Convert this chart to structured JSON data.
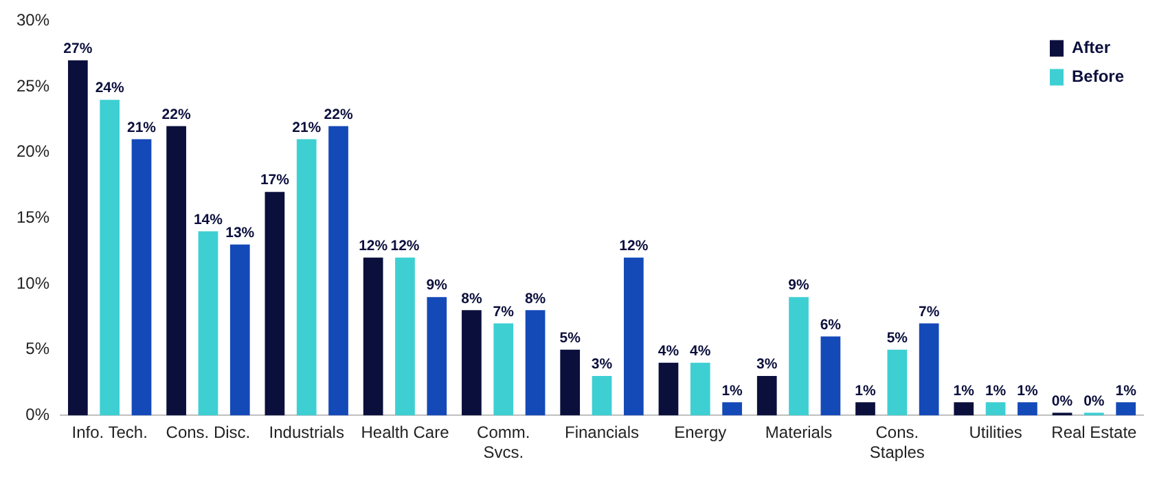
{
  "chart_data": {
    "type": "bar",
    "categories": [
      "Info. Tech.",
      "Cons. Disc.",
      "Industrials",
      "Health Care",
      "Comm.\nSvcs.",
      "Financials",
      "Energy",
      "Materials",
      "Cons.\nStaples",
      "Utilities",
      "Real Estate"
    ],
    "series": [
      {
        "name": "After",
        "color": "#0b0f3c",
        "values": [
          27,
          22,
          17,
          12,
          8,
          5,
          4,
          3,
          1,
          1,
          0
        ],
        "value_labels": [
          "27%",
          "22%",
          "17%",
          "12%",
          "8%",
          "5%",
          "4%",
          "3%",
          "1%",
          "1%",
          "0%"
        ]
      },
      {
        "name": "Before",
        "color": "#3ecfd3",
        "values": [
          24,
          14,
          21,
          12,
          7,
          3,
          4,
          9,
          5,
          1,
          0
        ],
        "value_labels": [
          "24%",
          "14%",
          "21%",
          "12%",
          "7%",
          "3%",
          "4%",
          "9%",
          "5%",
          "1%",
          "0%"
        ]
      },
      {
        "color": "#1449b8",
        "values": [
          21,
          13,
          22,
          9,
          8,
          12,
          1,
          6,
          7,
          1,
          1
        ],
        "value_labels": [
          "21%",
          "13%",
          "22%",
          "9%",
          "8%",
          "12%",
          "1%",
          "6%",
          "7%",
          "1%",
          "1%"
        ]
      }
    ],
    "ylim": [
      0,
      30
    ],
    "yticks": [
      {
        "value": 0,
        "label": "0%"
      },
      {
        "value": 5,
        "label": "5%"
      },
      {
        "value": 10,
        "label": "10%"
      },
      {
        "value": 15,
        "label": "15%"
      },
      {
        "value": 20,
        "label": "20%"
      },
      {
        "value": 25,
        "label": "25%"
      },
      {
        "value": 30,
        "label": "30%"
      }
    ],
    "grid": false,
    "legend": "top right"
  }
}
